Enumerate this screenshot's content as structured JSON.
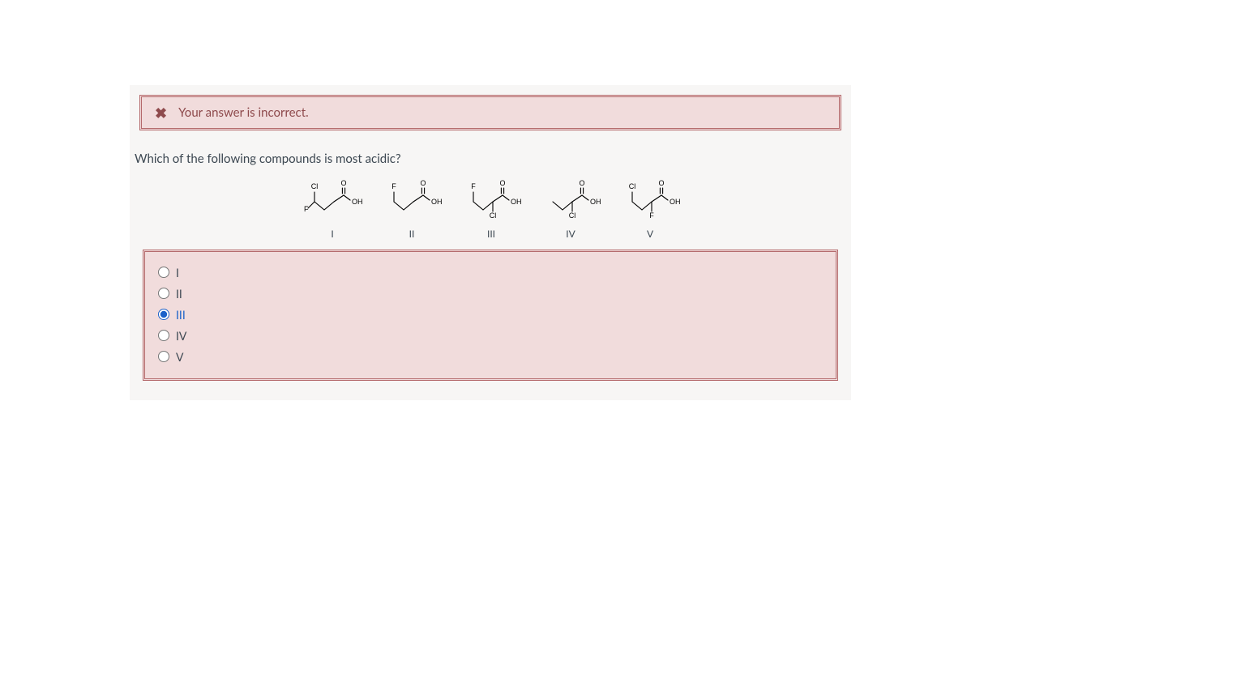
{
  "feedback": {
    "icon_name": "x-icon",
    "message": "Your answer is incorrect."
  },
  "question": "Which of the following compounds is most acidic?",
  "compounds": {
    "stroke_color": "#000000",
    "stroke_width": 1.1,
    "label_font_size": 9,
    "items": [
      {
        "roman": "I",
        "top_left": "Cl",
        "top_right": "O",
        "far_left": "F",
        "right": "OH",
        "bottom_mid": ""
      },
      {
        "roman": "II",
        "top_left": "F",
        "top_right": "O",
        "far_left": "",
        "right": "OH",
        "bottom_mid": ""
      },
      {
        "roman": "III",
        "top_left": "F",
        "top_right": "O",
        "far_left": "",
        "right": "OH",
        "bottom_mid": "Cl"
      },
      {
        "roman": "IV",
        "top_left": "",
        "top_right": "O",
        "far_left": "",
        "right": "OH",
        "bottom_mid": "Cl"
      },
      {
        "roman": "V",
        "top_left": "Cl",
        "top_right": "O",
        "far_left": "",
        "right": "OH",
        "bottom_mid": "F"
      }
    ]
  },
  "answers": {
    "options": [
      {
        "label": "I",
        "selected": false
      },
      {
        "label": "II",
        "selected": false
      },
      {
        "label": "III",
        "selected": true
      },
      {
        "label": "IV",
        "selected": false
      },
      {
        "label": "V",
        "selected": false
      }
    ]
  },
  "colors": {
    "page_bg": "#ffffff",
    "card_bg": "#f7f6f5",
    "error_bg": "#f1dcdc",
    "error_border": "#b46a6c",
    "error_text": "#8e4a4c",
    "body_text": "#3d4852",
    "accent": "#1b61c9"
  }
}
